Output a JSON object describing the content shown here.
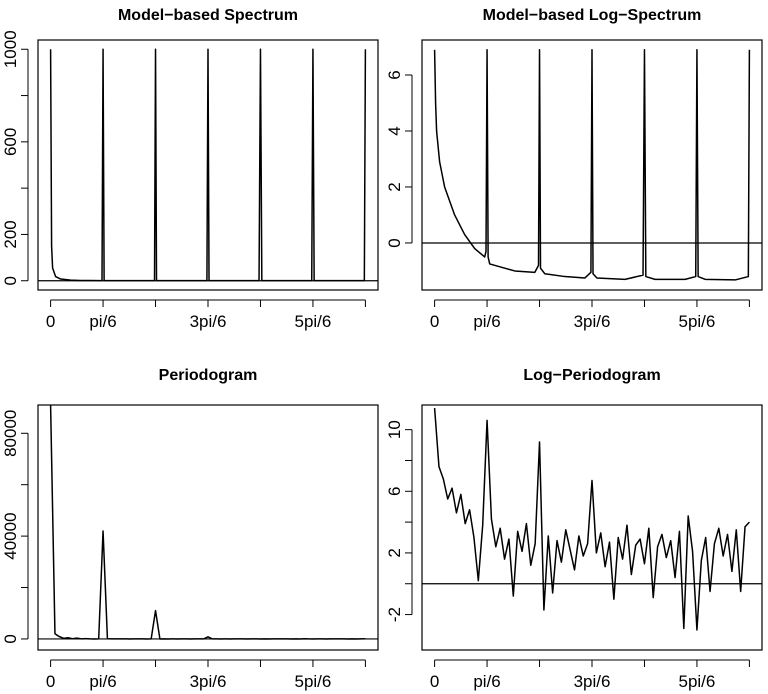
{
  "chart_data": [
    {
      "type": "line",
      "title": "Model−based Spectrum",
      "x": [
        0,
        0.01,
        0.02,
        0.05,
        0.1,
        0.2,
        0.3,
        0.4,
        0.5,
        0.513,
        0.5236,
        0.534,
        0.55,
        0.8,
        1.0,
        1.037,
        1.0472,
        1.057,
        1.1,
        1.3,
        1.5,
        1.56,
        1.5708,
        1.581,
        1.62,
        1.9,
        2.08,
        2.0944,
        2.108,
        2.2,
        2.5,
        2.606,
        2.618,
        2.63,
        2.7,
        3.0,
        3.131,
        3.1416
      ],
      "values": [
        1000,
        150,
        55,
        18,
        7.4,
        2.7,
        1.3,
        0.8,
        0.6,
        0.7,
        1000,
        0.6,
        0.5,
        0.4,
        0.35,
        0.45,
        1000,
        0.4,
        0.33,
        0.3,
        0.29,
        0.35,
        1000,
        0.33,
        0.29,
        0.27,
        0.32,
        1000,
        0.3,
        0.27,
        0.27,
        0.3,
        1000,
        0.3,
        0.27,
        0.27,
        0.3,
        1000
      ],
      "color": "#000000",
      "xlim": [
        -0.1257,
        3.2673
      ],
      "xticks": [
        0,
        {
          "value": 0.5236,
          "label": "pi/6"
        },
        {
          "value": 1.0472,
          "label": null
        },
        {
          "value": 1.5708,
          "label": "3pi/6"
        },
        {
          "value": 2.0944,
          "label": null
        },
        {
          "value": 2.618,
          "label": "5pi/6"
        },
        {
          "value": 3.1416,
          "label": null
        }
      ],
      "ylim": [
        -40,
        1040
      ],
      "yticks": [
        0,
        200,
        {
          "value": 400,
          "label": null
        },
        600,
        {
          "value": 800,
          "label": null
        },
        1000
      ],
      "hline": 0
    },
    {
      "type": "line",
      "title": "Model−based Log−Spectrum",
      "x": [
        0,
        0.01,
        0.02,
        0.05,
        0.1,
        0.2,
        0.3,
        0.4,
        0.5,
        0.513,
        0.5236,
        0.534,
        0.55,
        0.8,
        1.0,
        1.037,
        1.0472,
        1.057,
        1.1,
        1.3,
        1.5,
        1.56,
        1.5708,
        1.581,
        1.62,
        1.9,
        2.08,
        2.0944,
        2.108,
        2.2,
        2.5,
        2.606,
        2.618,
        2.63,
        2.7,
        3.0,
        3.131,
        3.1416
      ],
      "values": [
        6.9,
        5.0,
        4.0,
        2.9,
        2.0,
        1.0,
        0.3,
        -0.2,
        -0.5,
        -0.3,
        6.9,
        -0.5,
        -0.75,
        -1.0,
        -1.05,
        -0.8,
        6.9,
        -0.9,
        -1.1,
        -1.2,
        -1.25,
        -1.05,
        6.9,
        -1.1,
        -1.25,
        -1.3,
        -1.15,
        6.9,
        -1.2,
        -1.3,
        -1.3,
        -1.2,
        6.9,
        -1.2,
        -1.3,
        -1.32,
        -1.2,
        6.9
      ],
      "color": "#000000",
      "xlim": [
        -0.1257,
        3.2673
      ],
      "xticks": [
        0,
        {
          "value": 0.5236,
          "label": "pi/6"
        },
        {
          "value": 1.0472,
          "label": null
        },
        {
          "value": 1.5708,
          "label": "3pi/6"
        },
        {
          "value": 2.0944,
          "label": null
        },
        {
          "value": 2.618,
          "label": "5pi/6"
        },
        {
          "value": 3.1416,
          "label": null
        }
      ],
      "ylim": [
        -1.68,
        7.25
      ],
      "yticks": [
        0,
        2,
        4,
        6
      ],
      "hline": 0
    },
    {
      "type": "line",
      "title": "Periodogram",
      "x": [
        0,
        0.0436,
        0.0873,
        0.1309,
        0.1745,
        0.2182,
        0.2618,
        0.3054,
        0.3491,
        0.3927,
        0.4363,
        0.48,
        0.5236,
        0.5672,
        0.6109,
        0.6545,
        0.6981,
        0.7418,
        0.7854,
        0.829,
        0.8727,
        0.9163,
        0.9599,
        1.0036,
        1.0472,
        1.0908,
        1.1345,
        1.1781,
        1.2217,
        1.2654,
        1.309,
        1.3526,
        1.3963,
        1.4399,
        1.4835,
        1.5272,
        1.5708,
        1.6144,
        1.6581,
        1.7017,
        1.7453,
        1.789,
        1.8326,
        1.8762,
        1.9199,
        1.9635,
        2.0071,
        2.0508,
        2.0944,
        2.138,
        2.1817,
        2.2253,
        2.2689,
        2.3126,
        2.3562,
        2.3998,
        2.4435,
        2.4871,
        2.5307,
        2.5744,
        2.618,
        2.6616,
        2.7053,
        2.7489,
        2.7925,
        2.8362,
        2.8798,
        2.9234,
        2.9671,
        3.0107,
        3.0543,
        3.098,
        3.1416
      ],
      "values": [
        91000,
        2000,
        900,
        245,
        490,
        100,
        330,
        49,
        120,
        20,
        1,
        45,
        42000,
        67,
        11,
        37,
        5,
        18,
        0.4,
        30,
        8,
        49,
        3,
        13,
        11000,
        0.2,
        22,
        0.5,
        16,
        4,
        33,
        9,
        2.5,
        22,
        6,
        13,
        810,
        7,
        27,
        3,
        15,
        0.4,
        20,
        5,
        45,
        1.8,
        12,
        18,
        3.7,
        37,
        0.4,
        11,
        25,
        5.5,
        16,
        1.5,
        30,
        0.06,
        81,
        8,
        0.05,
        4.5,
        20,
        0.6,
        13,
        37,
        6,
        25,
        2.2,
        33,
        0.6,
        40,
        55
      ],
      "color": "#000000",
      "xlim": [
        -0.1257,
        3.2673
      ],
      "xticks": [
        0,
        {
          "value": 0.5236,
          "label": "pi/6"
        },
        {
          "value": 1.0472,
          "label": null
        },
        {
          "value": 1.5708,
          "label": "3pi/6"
        },
        {
          "value": 2.0944,
          "label": null
        },
        {
          "value": 2.618,
          "label": "5pi/6"
        },
        {
          "value": 3.1416,
          "label": null
        }
      ],
      "ylim": [
        -4300,
        91000
      ],
      "yticks": [
        0,
        {
          "value": 20000,
          "label": null
        },
        40000,
        {
          "value": 60000,
          "label": null
        },
        80000
      ],
      "hline": 0
    },
    {
      "type": "line",
      "title": "Log−Periodogram",
      "x": [
        0,
        0.0436,
        0.0873,
        0.1309,
        0.1745,
        0.2182,
        0.2618,
        0.3054,
        0.3491,
        0.3927,
        0.4363,
        0.48,
        0.5236,
        0.5672,
        0.6109,
        0.6545,
        0.6981,
        0.7418,
        0.7854,
        0.829,
        0.8727,
        0.9163,
        0.9599,
        1.0036,
        1.0472,
        1.0908,
        1.1345,
        1.1781,
        1.2217,
        1.2654,
        1.309,
        1.3526,
        1.3963,
        1.4399,
        1.4835,
        1.5272,
        1.5708,
        1.6144,
        1.6581,
        1.7017,
        1.7453,
        1.789,
        1.8326,
        1.8762,
        1.9199,
        1.9635,
        2.0071,
        2.0508,
        2.0944,
        2.138,
        2.1817,
        2.2253,
        2.2689,
        2.3126,
        2.3562,
        2.3998,
        2.4435,
        2.4871,
        2.5307,
        2.5744,
        2.618,
        2.6616,
        2.7053,
        2.7489,
        2.7925,
        2.8362,
        2.8798,
        2.9234,
        2.9671,
        3.0107,
        3.0543,
        3.098,
        3.1416
      ],
      "values": [
        11.4,
        7.6,
        6.8,
        5.5,
        6.2,
        4.6,
        5.8,
        3.9,
        4.8,
        3.0,
        0.2,
        3.8,
        10.6,
        4.2,
        2.4,
        3.6,
        1.6,
        2.9,
        -0.8,
        3.4,
        2.1,
        3.9,
        1.2,
        2.6,
        9.2,
        -1.7,
        3.1,
        -0.6,
        2.8,
        1.4,
        3.5,
        2.2,
        0.9,
        3.1,
        1.8,
        2.6,
        6.7,
        2.0,
        3.3,
        1.1,
        2.7,
        -1.0,
        3.0,
        1.6,
        3.8,
        0.6,
        2.5,
        2.9,
        1.3,
        3.6,
        -0.9,
        2.4,
        3.2,
        1.7,
        2.8,
        0.4,
        3.4,
        -2.9,
        4.4,
        2.1,
        -3.0,
        1.5,
        3.0,
        -0.5,
        2.6,
        3.6,
        1.8,
        3.2,
        0.8,
        3.5,
        -0.5,
        3.7,
        4.0
      ],
      "color": "#000000",
      "xlim": [
        -0.1257,
        3.2673
      ],
      "xticks": [
        0,
        {
          "value": 0.5236,
          "label": "pi/6"
        },
        {
          "value": 1.0472,
          "label": null
        },
        {
          "value": 1.5708,
          "label": "3pi/6"
        },
        {
          "value": 2.0944,
          "label": null
        },
        {
          "value": 2.618,
          "label": "5pi/6"
        },
        {
          "value": 3.1416,
          "label": null
        }
      ],
      "ylim": [
        -4.3,
        11.6
      ],
      "yticks": [
        -2,
        {
          "value": 0,
          "label": null
        },
        2,
        {
          "value": 4,
          "label": null
        },
        6,
        {
          "value": 8,
          "label": null
        },
        10
      ],
      "hline": 0
    }
  ]
}
